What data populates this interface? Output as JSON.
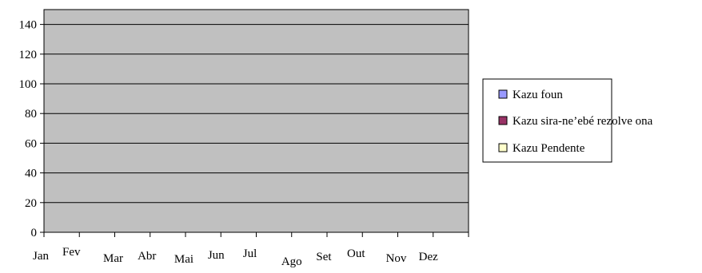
{
  "chart_data": {
    "type": "bar",
    "title": "",
    "xlabel": "",
    "ylabel": "",
    "categories": [
      "Jan",
      "Fev",
      "Mar",
      "Abr",
      "Mai",
      "Jun",
      "Jul",
      "Ago",
      "Set",
      "Out",
      "Nov",
      "Dez"
    ],
    "ylim": [
      0,
      150
    ],
    "y_ticks": [
      0,
      20,
      40,
      60,
      80,
      100,
      120,
      140
    ],
    "grid": true,
    "plot_background": "#c0c0c0",
    "legend_position": "right",
    "series": [
      {
        "name": "Kazu foun",
        "color": "#9999ff",
        "values": [
          0,
          0,
          0,
          0,
          0,
          0,
          0,
          0,
          0,
          0,
          0,
          0
        ]
      },
      {
        "name": "Kazu sira-ne’ebé rezolve ona",
        "color": "#993366",
        "values": [
          0,
          0,
          0,
          0,
          0,
          0,
          0,
          0,
          0,
          0,
          0,
          0
        ]
      },
      {
        "name": "Kazu Pendente",
        "color": "#ffffcc",
        "values": [
          0,
          0,
          0,
          0,
          0,
          0,
          0,
          0,
          0,
          0,
          0,
          0
        ]
      }
    ]
  }
}
